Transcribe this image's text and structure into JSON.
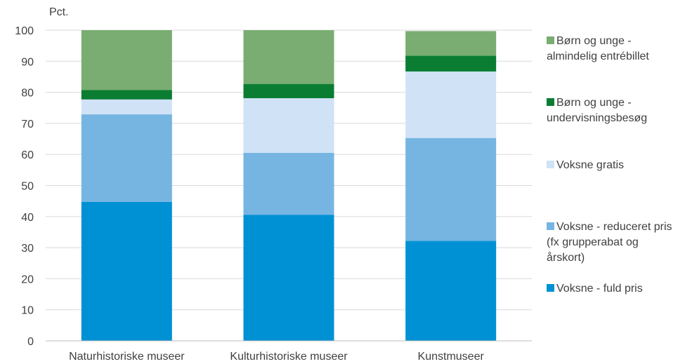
{
  "chart_data": {
    "type": "bar",
    "stacked": true,
    "ylabel": "Pct.",
    "ylim": [
      0,
      100
    ],
    "yticks": [
      0,
      10,
      20,
      30,
      40,
      50,
      60,
      70,
      80,
      90,
      100
    ],
    "grid": true,
    "legend_position": "right",
    "categories": [
      "Naturhistoriske museer",
      "Kulturhistoriske museer",
      "Kunstmuseer"
    ],
    "series": [
      {
        "name": "Voksne - fuld pris",
        "legend_lines": [
          "Voksne - fuld pris"
        ],
        "color": "#0091D4",
        "values": [
          44.7,
          40.6,
          32.2
        ]
      },
      {
        "name": "Voksne - reduceret pris (fx grupperabat og årskort)",
        "legend_lines": [
          "Voksne - reduceret pris",
          "(fx grupperabat og",
          "årskort)"
        ],
        "color": "#76B5E2",
        "values": [
          28.2,
          19.9,
          33.1
        ]
      },
      {
        "name": "Voksne gratis",
        "legend_lines": [
          "Voksne gratis"
        ],
        "color": "#CFE2F6",
        "values": [
          4.8,
          17.6,
          21.4
        ]
      },
      {
        "name": "Børn og unge - undervisningsbesøg",
        "legend_lines": [
          "Børn og unge -",
          "undervisningsbesøg"
        ],
        "color": "#0A7D32",
        "values": [
          3.0,
          4.6,
          5.1
        ]
      },
      {
        "name": "Børn og unge - almindelig entrébillet",
        "legend_lines": [
          "Børn og unge -",
          "almindelig entrébillet"
        ],
        "color": "#79AD71",
        "values": [
          19.3,
          17.3,
          7.9
        ]
      }
    ]
  }
}
